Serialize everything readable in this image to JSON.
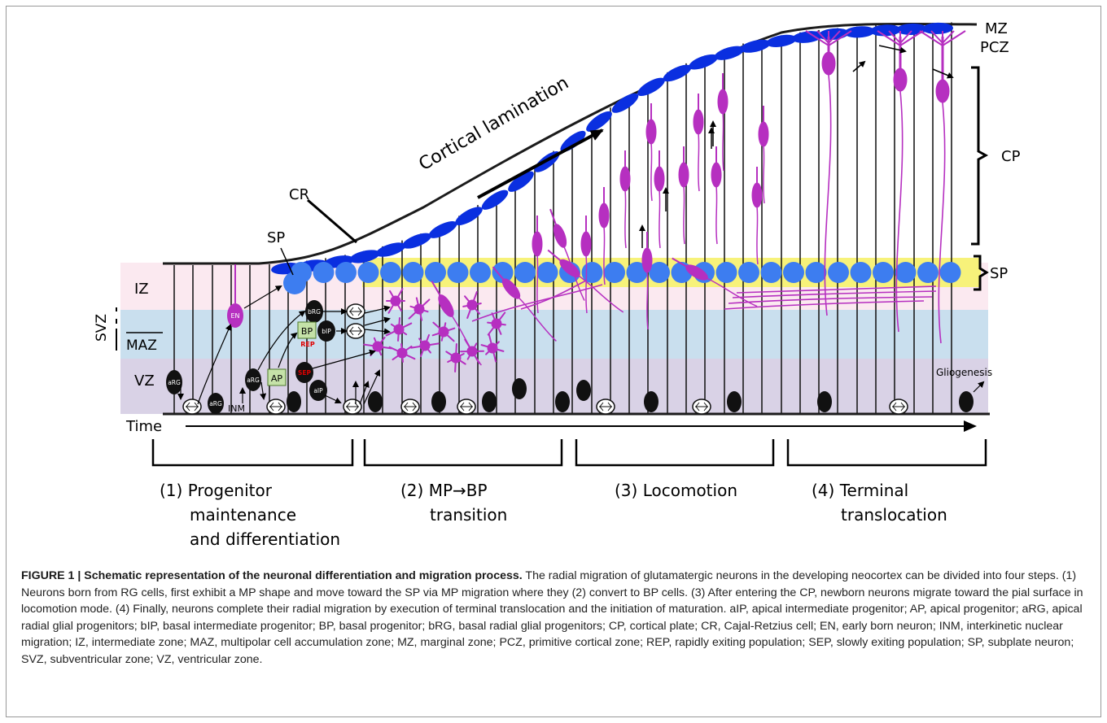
{
  "figure": {
    "zone_labels": {
      "mz": "MZ",
      "pcz": "PCZ",
      "cp": "CP",
      "sp_right": "SP",
      "sp_left": "SP",
      "cr": "CR",
      "iz": "IZ",
      "svz": "SVZ",
      "maz": "MAZ",
      "vz": "VZ",
      "time": "Time"
    },
    "cortical_lamination": "Cortical lamination",
    "gliogenesis": "Gliogenesis",
    "cell_labels": {
      "en": "EN",
      "brg": "bRG",
      "bp": "BP",
      "bip": "bIP",
      "rep": "REP",
      "ap": "AP",
      "sep": "SEP",
      "aip": "aIP",
      "arg_1": "aRG",
      "arg_2": "aRG",
      "arg_3": "aRG",
      "inm": "INM"
    },
    "steps": [
      {
        "number": "(1)",
        "line1": "Progenitor",
        "line2": "maintenance",
        "line3": "and differentiation"
      },
      {
        "number": "(2)",
        "line1": "MP→BP",
        "line2": "transition"
      },
      {
        "number": "(3)",
        "line1": "Locomotion"
      },
      {
        "number": "(4)",
        "line1": "Terminal",
        "line2": "translocation"
      }
    ],
    "colors": {
      "cr_blue": "#0a2fe0",
      "sp_blue": "#3d7df0",
      "neuron_magenta": "#b62fc0",
      "sp_band_yellow": "#f7f27a",
      "iz_pink": "#fbe9f0",
      "svz_blue": "#c9dfee",
      "vz_purple": "#d9d2e6"
    }
  },
  "caption": {
    "title": "FIGURE 1 | Schematic representation of the neuronal differentiation and migration process.",
    "body": " The radial migration of glutamatergic neurons in the developing neocortex can be divided into four steps. (1) Neurons born from RG cells, first exhibit a MP shape and move toward the SP via MP migration where they (2) convert to BP cells. (3) After entering the CP, newborn neurons migrate toward the pial surface in locomotion mode. (4) Finally, neurons complete their radial migration by execution of terminal translocation and the initiation of maturation. aIP, apical intermediate progenitor; AP, apical progenitor; aRG, apical radial glial progenitors; bIP, basal intermediate progenitor; BP, basal progenitor; bRG, basal radial glial progenitors; CP, cortical plate; CR, Cajal-Retzius cell; EN, early born neuron; INM, interkinetic nuclear migration; IZ, intermediate zone; MAZ, multipolar cell accumulation zone; MZ, marginal zone; PCZ, primitive cortical zone; REP, rapidly exiting population; SEP, slowly exiting population; SP, subplate neuron; SVZ, subventricular zone; VZ, ventricular zone."
  }
}
